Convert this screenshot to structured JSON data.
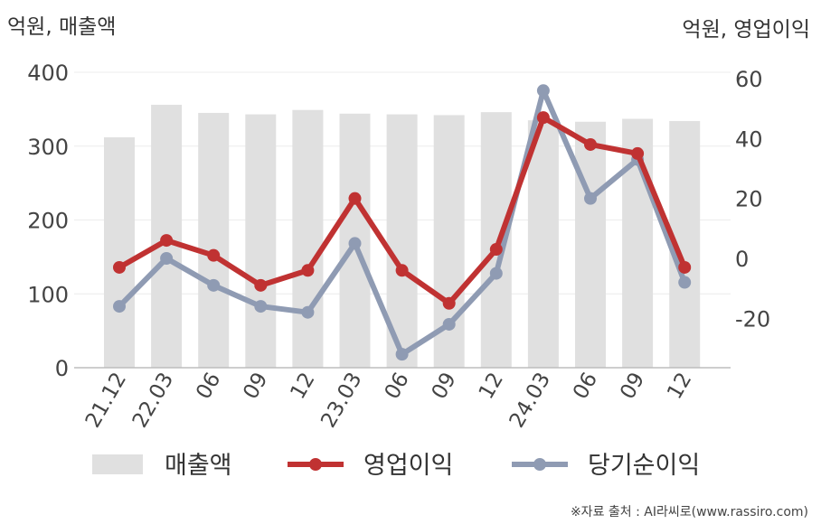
{
  "chart_data": {
    "type": "bar+line",
    "left_axis_label": "억원, 매출액",
    "right_axis_label": "억원, 영업이익",
    "categories": [
      "21.12",
      "22.03",
      "06",
      "09",
      "12",
      "23.03",
      "06",
      "09",
      "12",
      "24.03",
      "06",
      "09",
      "12"
    ],
    "left_axis": {
      "ylim": [
        0,
        400
      ],
      "ticks": [
        0,
        100,
        200,
        300,
        400
      ]
    },
    "right_axis": {
      "ylim": [
        -40,
        60
      ],
      "ticks": [
        -20,
        0,
        20,
        40,
        60
      ]
    },
    "series": [
      {
        "name": "매출액",
        "type": "bar",
        "axis": "left",
        "color": "#e0e0e0",
        "values": [
          312,
          356,
          345,
          343,
          349,
          344,
          343,
          342,
          346,
          335,
          333,
          337,
          334
        ]
      },
      {
        "name": "영업이익",
        "type": "line",
        "axis": "right",
        "color": "#c03232",
        "values": [
          -3,
          6,
          1,
          -9,
          -4,
          20,
          -4,
          -15,
          3,
          47,
          38,
          35,
          -3
        ]
      },
      {
        "name": "당기순이익",
        "type": "line",
        "axis": "right",
        "color": "#8f9bb3",
        "values": [
          -16,
          0,
          -9,
          -16,
          -18,
          5,
          -32,
          -22,
          -5,
          56,
          20,
          33,
          -8
        ]
      }
    ],
    "grid": true,
    "legend_position": "bottom"
  },
  "source_note": "※자료 출처 : AI라씨로(www.rassiro.com)"
}
